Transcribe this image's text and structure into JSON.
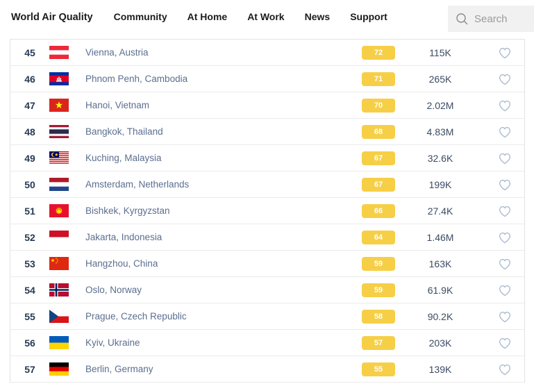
{
  "nav": {
    "brand": "World Air Quality",
    "items": [
      {
        "label": "Community"
      },
      {
        "label": "At Home"
      },
      {
        "label": "At Work"
      },
      {
        "label": "News"
      },
      {
        "label": "Support"
      }
    ],
    "search": {
      "placeholder": "Search",
      "icon": "magnifier-icon"
    }
  },
  "colors": {
    "aqi_badge_yellow": "#f6cf47",
    "city_link": "#5b6e8f",
    "rank_text": "#273a53",
    "heart_outline": "#a9bacf",
    "search_background": "#f1f1f1",
    "row_divider": "#ebebeb"
  },
  "table": {
    "rows": [
      {
        "rank": "45",
        "flag": "austria",
        "city": "Vienna, Austria",
        "aqi": "72",
        "followers": "115K"
      },
      {
        "rank": "46",
        "flag": "cambodia",
        "city": "Phnom Penh, Cambodia",
        "aqi": "71",
        "followers": "265K"
      },
      {
        "rank": "47",
        "flag": "vietnam",
        "city": "Hanoi, Vietnam",
        "aqi": "70",
        "followers": "2.02M"
      },
      {
        "rank": "48",
        "flag": "thailand",
        "city": "Bangkok, Thailand",
        "aqi": "68",
        "followers": "4.83M"
      },
      {
        "rank": "49",
        "flag": "malaysia",
        "city": "Kuching, Malaysia",
        "aqi": "67",
        "followers": "32.6K"
      },
      {
        "rank": "50",
        "flag": "netherlands",
        "city": "Amsterdam, Netherlands",
        "aqi": "67",
        "followers": "199K"
      },
      {
        "rank": "51",
        "flag": "kyrgyzstan",
        "city": "Bishkek, Kyrgyzstan",
        "aqi": "66",
        "followers": "27.4K"
      },
      {
        "rank": "52",
        "flag": "indonesia",
        "city": "Jakarta, Indonesia",
        "aqi": "64",
        "followers": "1.46M"
      },
      {
        "rank": "53",
        "flag": "china",
        "city": "Hangzhou, China",
        "aqi": "59",
        "followers": "163K"
      },
      {
        "rank": "54",
        "flag": "norway",
        "city": "Oslo, Norway",
        "aqi": "59",
        "followers": "61.9K"
      },
      {
        "rank": "55",
        "flag": "czech-republic",
        "city": "Prague, Czech Republic",
        "aqi": "58",
        "followers": "90.2K"
      },
      {
        "rank": "56",
        "flag": "ukraine",
        "city": "Kyiv, Ukraine",
        "aqi": "57",
        "followers": "203K"
      },
      {
        "rank": "57",
        "flag": "germany",
        "city": "Berlin, Germany",
        "aqi": "55",
        "followers": "139K"
      }
    ]
  }
}
